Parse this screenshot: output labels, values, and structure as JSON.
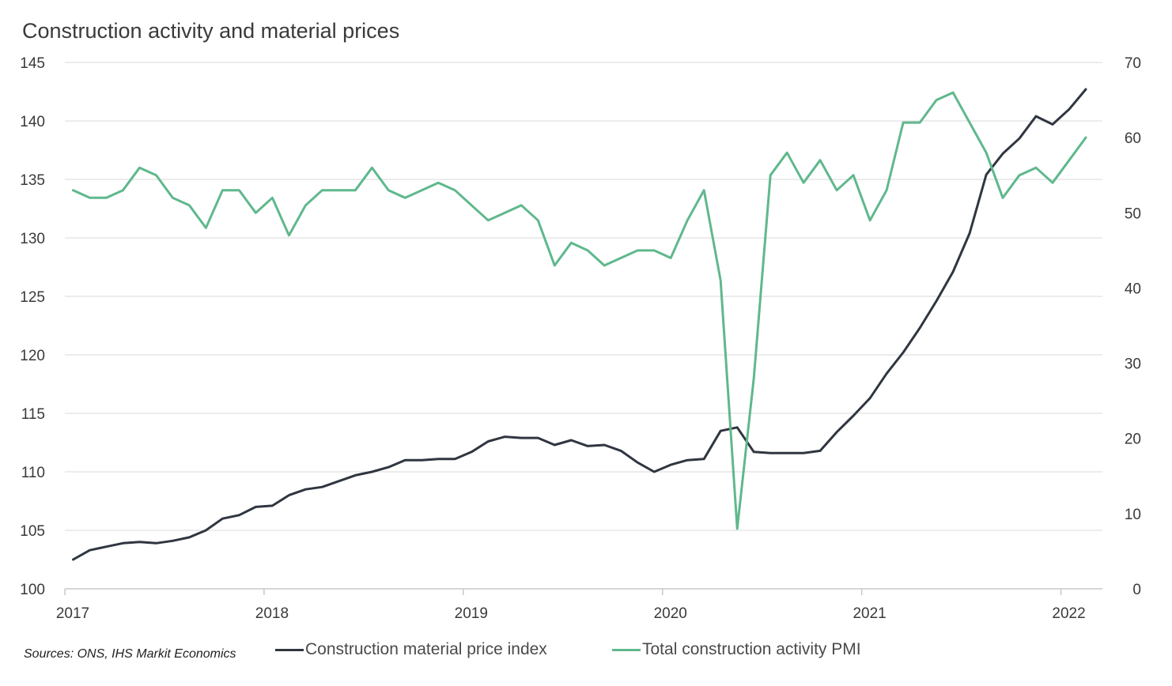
{
  "chart_data": {
    "type": "line",
    "title": "Construction activity and material prices",
    "source": "Sources: ONS, IHS Markit Economics",
    "x_start": "2017-01",
    "x_ticks": [
      "2017",
      "2018",
      "2019",
      "2020",
      "2021",
      "2022"
    ],
    "y_left": {
      "min": 100,
      "max": 145,
      "ticks": [
        "100",
        "105",
        "110",
        "115",
        "120",
        "125",
        "130",
        "135",
        "140",
        "145"
      ]
    },
    "y_right": {
      "min": 0,
      "max": 70,
      "ticks": [
        "0",
        "10",
        "20",
        "30",
        "40",
        "50",
        "60",
        "70"
      ]
    },
    "grid": true,
    "legend_position": "bottom",
    "series": [
      {
        "name": "Construction material price index",
        "axis": "left",
        "color": "#2f3640",
        "values": [
          102.5,
          103.3,
          103.6,
          103.9,
          104.0,
          103.9,
          104.1,
          104.4,
          105.0,
          106.0,
          106.3,
          107.0,
          107.1,
          108.0,
          108.5,
          108.7,
          109.2,
          109.7,
          110.0,
          110.4,
          111.0,
          111.0,
          111.1,
          111.1,
          111.7,
          112.6,
          113.0,
          112.9,
          112.9,
          112.3,
          112.7,
          112.2,
          112.3,
          111.8,
          110.8,
          110.0,
          110.6,
          111.0,
          111.1,
          113.5,
          113.8,
          111.7,
          111.6,
          111.6,
          111.6,
          111.8,
          113.4,
          114.8,
          116.3,
          118.4,
          120.2,
          122.3,
          124.6,
          127.1,
          130.4,
          135.4,
          137.2,
          138.5,
          140.4,
          139.7,
          141.0,
          142.7
        ]
      },
      {
        "name": "Total construction activity PMI",
        "axis": "right",
        "color": "#5fb88c",
        "values": [
          53,
          52,
          52,
          53,
          56,
          55,
          52,
          51,
          48,
          53,
          53,
          50,
          52,
          47,
          51,
          53,
          53,
          53,
          56,
          53,
          52,
          53,
          54,
          53,
          51,
          49,
          50,
          51,
          49,
          43,
          46,
          45,
          43,
          44,
          45,
          45,
          44,
          49,
          53,
          41,
          8,
          28,
          55,
          58,
          54,
          57,
          53,
          55,
          49,
          53,
          62,
          62,
          65,
          66,
          62,
          58,
          52,
          55,
          56,
          54,
          57,
          60
        ]
      }
    ]
  }
}
